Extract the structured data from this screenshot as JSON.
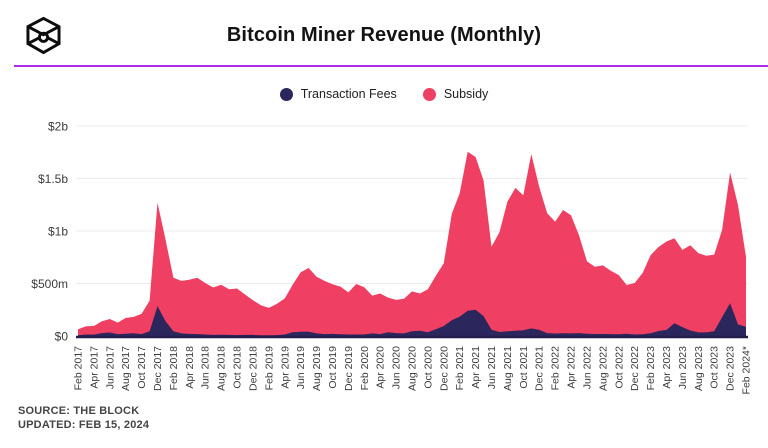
{
  "header": {
    "title": "Bitcoin Miner Revenue (Monthly)"
  },
  "footer": {
    "source": "SOURCE: THE BLOCK",
    "updated": "UPDATED: FEB 15, 2024"
  },
  "colors": {
    "divider": "#b22be6",
    "grid": "#ebebeb",
    "baseline": "#221d49",
    "axis_text": "#3c3c3c",
    "title_text": "#131313"
  },
  "chart_data": {
    "type": "area",
    "stacked": true,
    "title": "Bitcoin Miner Revenue (Monthly)",
    "unit": "USD millions per month",
    "grid": "horizontal",
    "legend_position": "top",
    "ylim": [
      0,
      2000
    ],
    "x_tick_every": 2,
    "y_ticks": [
      {
        "label": "$0",
        "value": 0
      },
      {
        "label": "$500m",
        "value": 500
      },
      {
        "label": "$1b",
        "value": 1000
      },
      {
        "label": "$1.5b",
        "value": 1500
      },
      {
        "label": "$2b",
        "value": 2000
      }
    ],
    "months": [
      "Feb 2017",
      "Mar 2017",
      "Apr 2017",
      "May 2017",
      "Jun 2017",
      "Jul 2017",
      "Aug 2017",
      "Sep 2017",
      "Oct 2017",
      "Nov 2017",
      "Dec 2017",
      "Jan 2018",
      "Feb 2018",
      "Mar 2018",
      "Apr 2018",
      "May 2018",
      "Jun 2018",
      "Jul 2018",
      "Aug 2018",
      "Sep 2018",
      "Oct 2018",
      "Nov 2018",
      "Dec 2018",
      "Jan 2019",
      "Feb 2019",
      "Mar 2019",
      "Apr 2019",
      "May 2019",
      "Jun 2019",
      "Jul 2019",
      "Aug 2019",
      "Sep 2019",
      "Oct 2019",
      "Nov 2019",
      "Dec 2019",
      "Jan 2020",
      "Feb 2020",
      "Mar 2020",
      "Apr 2020",
      "May 2020",
      "Jun 2020",
      "Jul 2020",
      "Aug 2020",
      "Sep 2020",
      "Oct 2020",
      "Nov 2020",
      "Dec 2020",
      "Jan 2021",
      "Feb 2021",
      "Mar 2021",
      "Apr 2021",
      "May 2021",
      "Jun 2021",
      "Jul 2021",
      "Aug 2021",
      "Sep 2021",
      "Oct 2021",
      "Nov 2021",
      "Dec 2021",
      "Jan 2022",
      "Feb 2022",
      "Mar 2022",
      "Apr 2022",
      "May 2022",
      "Jun 2022",
      "Jul 2022",
      "Aug 2022",
      "Sep 2022",
      "Oct 2022",
      "Nov 2022",
      "Dec 2022",
      "Jan 2023",
      "Feb 2023",
      "Mar 2023",
      "Apr 2023",
      "May 2023",
      "Jun 2023",
      "Jul 2023",
      "Aug 2023",
      "Sep 2023",
      "Oct 2023",
      "Nov 2023",
      "Dec 2023",
      "Jan 2024",
      "Feb 2024*"
    ],
    "series": [
      {
        "name": "Transaction Fees",
        "color": "#2b265c",
        "values": [
          8,
          14,
          13,
          28,
          33,
          18,
          22,
          26,
          18,
          45,
          285,
          140,
          45,
          25,
          20,
          18,
          14,
          10,
          12,
          10,
          9,
          10,
          10,
          8,
          7,
          9,
          14,
          35,
          40,
          42,
          25,
          18,
          20,
          17,
          14,
          14,
          14,
          25,
          18,
          35,
          28,
          25,
          45,
          50,
          35,
          65,
          95,
          150,
          185,
          240,
          250,
          190,
          60,
          38,
          45,
          50,
          55,
          72,
          58,
          28,
          24,
          27,
          25,
          28,
          22,
          19,
          19,
          18,
          17,
          21,
          14,
          17,
          26,
          48,
          58,
          122,
          85,
          52,
          34,
          34,
          46,
          180,
          312,
          110,
          88
        ]
      },
      {
        "name": "Subsidy",
        "color": "#ef3f63",
        "values": [
          57,
          78,
          82,
          112,
          129,
          110,
          150,
          156,
          194,
          290,
          985,
          780,
          510,
          500,
          515,
          537,
          491,
          452,
          476,
          435,
          443,
          385,
          330,
          284,
          261,
          297,
          344,
          455,
          568,
          606,
          540,
          507,
          472,
          453,
          401,
          481,
          451,
          360,
          387,
          331,
          316,
          330,
          380,
          355,
          410,
          510,
          597,
          1015,
          1175,
          1515,
          1455,
          1290,
          790,
          952,
          1235,
          1360,
          1285,
          1661,
          1362,
          1142,
          1066,
          1173,
          1125,
          932,
          688,
          641,
          653,
          604,
          563,
          465,
          491,
          583,
          744,
          800,
          842,
          808,
          735,
          813,
          756,
          731,
          729,
          830,
          1246,
          1137,
          664
        ]
      }
    ]
  }
}
